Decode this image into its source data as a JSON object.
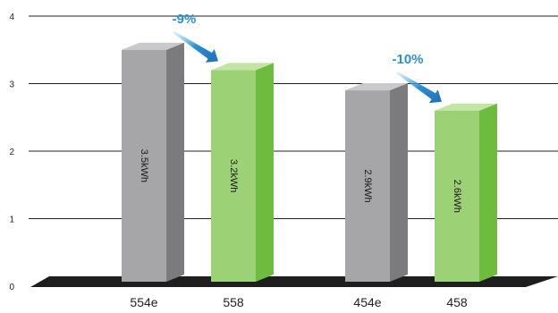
{
  "chart_data": {
    "type": "bar",
    "title": "",
    "xlabel": "",
    "ylabel": "",
    "ylim": [
      0,
      4
    ],
    "yticks": [
      0,
      1,
      2,
      3,
      4
    ],
    "grid": true,
    "categories": [
      "554e",
      "558",
      "454e",
      "458"
    ],
    "values": [
      3.5,
      3.2,
      2.9,
      2.6
    ],
    "value_labels": [
      "3.5kWh",
      "3.2kWh",
      "2.9kWh",
      "2.6kWh"
    ],
    "bar_colors": [
      "#a6a6a8",
      "#9dd175",
      "#a6a6a8",
      "#9dd175"
    ],
    "annotations": [
      {
        "text": "-9%",
        "from": "554e",
        "to": "558"
      },
      {
        "text": "-10%",
        "from": "454e",
        "to": "458"
      }
    ]
  },
  "colors": {
    "gray_front": "#a6a6a8",
    "gray_side": "#7b7b7d",
    "gray_top": "#c9c9cb",
    "green_front": "#9dd175",
    "green_side": "#6dbb3f",
    "green_top": "#c3e4a3",
    "base": "#1e1e1e",
    "arrow": "#2b8fd6",
    "annotation_text": "#2b8fd6",
    "grid": "#222222"
  }
}
